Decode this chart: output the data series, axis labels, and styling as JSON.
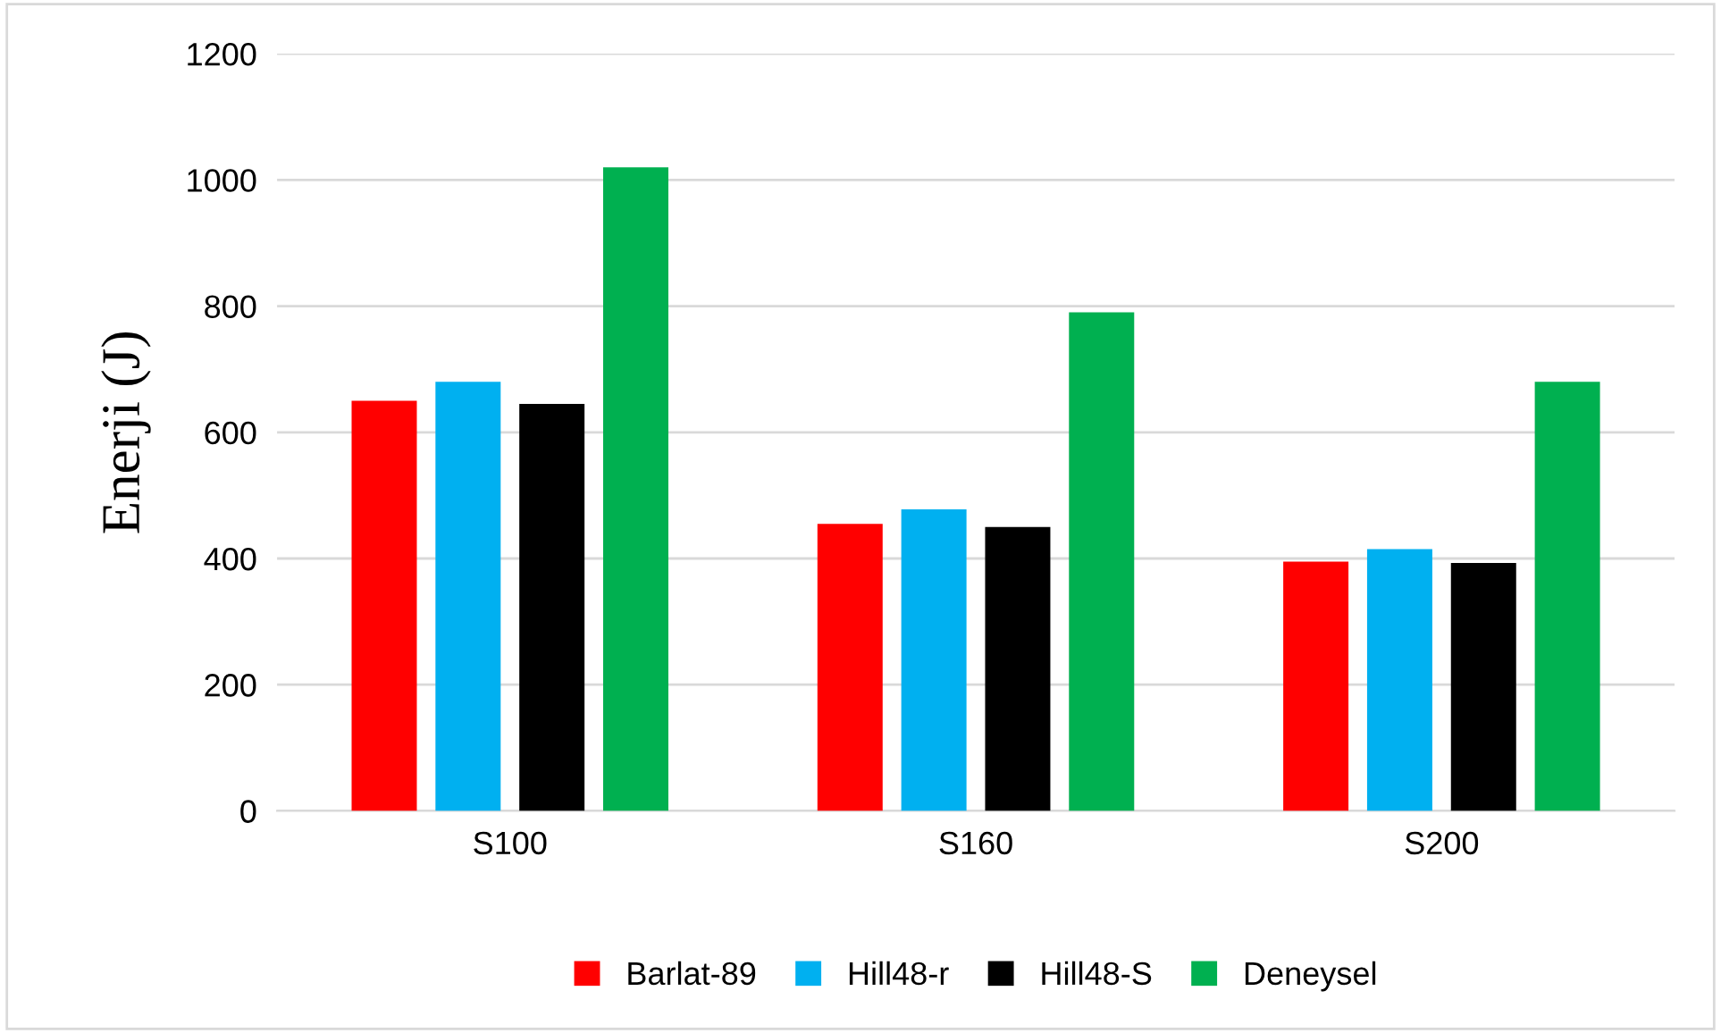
{
  "chart_data": {
    "type": "bar",
    "ylabel": "Enerji (J)",
    "categories": [
      "S100",
      "S160",
      "S200"
    ],
    "series": [
      {
        "name": "Barlat-89",
        "color": "#ff0000",
        "values": [
          650,
          455,
          395
        ]
      },
      {
        "name": "Hill48-r",
        "color": "#00b0f0",
        "values": [
          680,
          478,
          415
        ]
      },
      {
        "name": "Hill48-S",
        "color": "#000000",
        "values": [
          645,
          450,
          393
        ]
      },
      {
        "name": "Deneysel",
        "color": "#00b050",
        "values": [
          1020,
          790,
          680
        ]
      }
    ],
    "ylim": [
      0,
      1200
    ],
    "yticks": [
      0,
      200,
      400,
      600,
      800,
      1000,
      1200
    ],
    "grid": "y",
    "legend": "bottom"
  }
}
